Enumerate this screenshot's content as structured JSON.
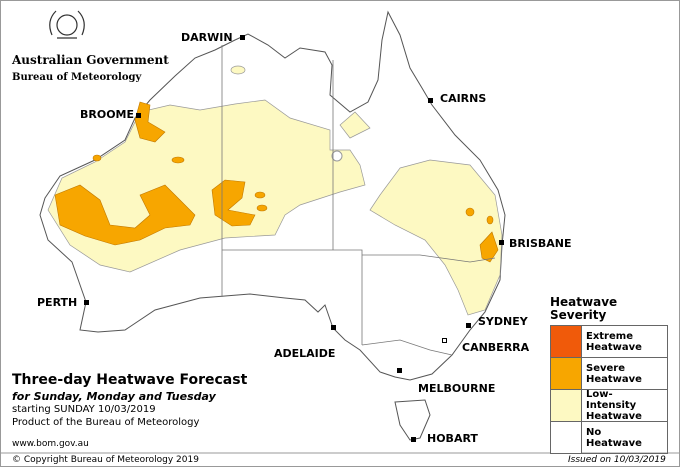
{
  "header": {
    "agency": "Australian Government",
    "bureau": "Bureau of Meteorology"
  },
  "cities": [
    {
      "label": "DARWIN"
    },
    {
      "label": "CAIRNS"
    },
    {
      "label": "BROOME"
    },
    {
      "label": "BRISBANE"
    },
    {
      "label": "PERTH"
    },
    {
      "label": "SYDNEY"
    },
    {
      "label": "ADELAIDE"
    },
    {
      "label": "CANBERRA"
    },
    {
      "label": "MELBOURNE"
    },
    {
      "label": "HOBART"
    }
  ],
  "title": {
    "main": "Three-day Heatwave Forecast",
    "subtitle": "for Sunday, Monday and Tuesday",
    "starting": "starting SUNDAY 10/03/2019",
    "product": "Product of the Bureau of Meteorology",
    "url": "www.bom.gov.au"
  },
  "legend": {
    "title": "Heatwave Severity",
    "items": [
      {
        "label": "Extreme Heatwave",
        "color": "#f05a0a"
      },
      {
        "label": "Severe Heatwave",
        "color": "#f7a600"
      },
      {
        "label": "Low-Intensity Heatwave",
        "color": "#fdf9c2"
      },
      {
        "label": "No Heatwave",
        "color": "#ffffff"
      }
    ]
  },
  "footer": {
    "copyright": "© Copyright Bureau of Meteorology 2019",
    "issued": "Issued on 10/03/2019"
  }
}
